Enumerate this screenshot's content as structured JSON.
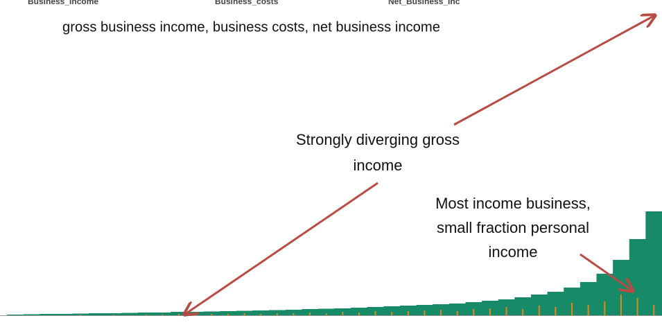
{
  "chart_data": {
    "type": "bar",
    "column_headers": [
      "Business_Income",
      "Business_costs",
      "Net_Business_Inc"
    ],
    "title": "gross business income, business costs, net business income",
    "annotations": [
      {
        "lines": [
          "Strongly diverging gross",
          "income"
        ]
      },
      {
        "lines": [
          "Most income business,",
          "small fraction personal",
          "income"
        ]
      }
    ],
    "categories": [
      null,
      null,
      null,
      null,
      null,
      null,
      null,
      null,
      null,
      null,
      null,
      null,
      null,
      null,
      null,
      null,
      null,
      null,
      null,
      null,
      null,
      null,
      null,
      null,
      null,
      null,
      null,
      null,
      null,
      null,
      null,
      null,
      null,
      null,
      null,
      null,
      null,
      null,
      null,
      null
    ],
    "series": [
      {
        "color": "#178a68",
        "values": [
          1,
          1.5,
          2,
          2,
          2.5,
          3,
          3,
          3.5,
          4,
          4,
          5,
          5,
          5.5,
          6,
          6.5,
          7,
          7.5,
          8,
          9,
          9.5,
          10,
          11,
          12,
          13,
          14,
          15,
          16,
          17,
          19,
          21,
          23,
          26,
          30,
          34,
          40,
          48,
          60,
          80,
          110,
          150
        ]
      },
      {
        "color": "#e0891e",
        "values": [
          0,
          0,
          0,
          0,
          1,
          0,
          1,
          0,
          1,
          1,
          2,
          1,
          2,
          2,
          3,
          2,
          3,
          3,
          4,
          3,
          5,
          4,
          6,
          5,
          6,
          7,
          8,
          6,
          9,
          10,
          12,
          9,
          14,
          12,
          18,
          15,
          20,
          30,
          25,
          15
        ]
      }
    ],
    "ylim": [
      0,
      160
    ]
  }
}
